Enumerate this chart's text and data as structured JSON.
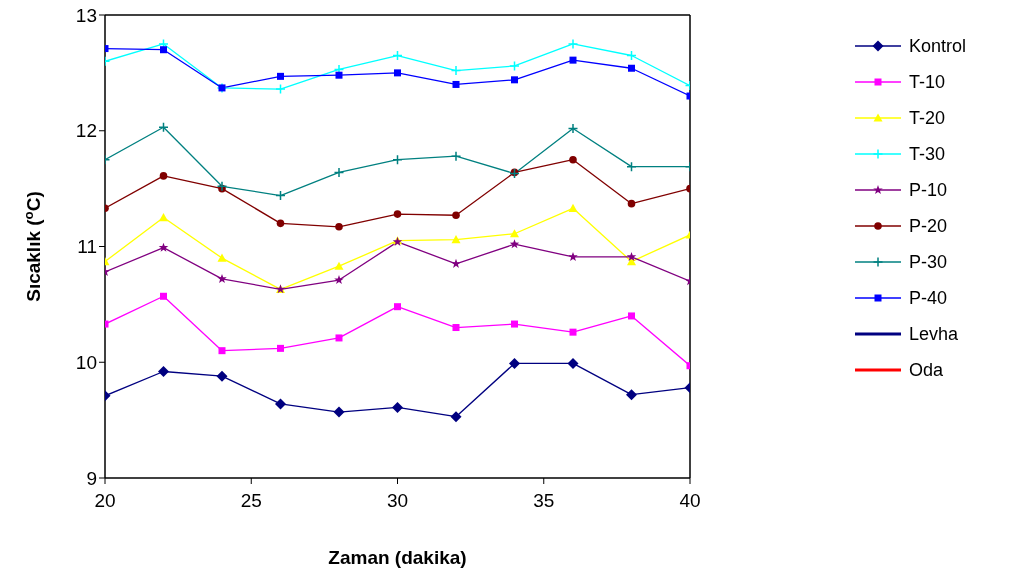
{
  "chart_data": {
    "type": "line",
    "xlabel": "Zaman (dakika)",
    "ylabel": "Sıcaklık ($^{o}$C)",
    "x": [
      20,
      22,
      24,
      26,
      28,
      30,
      32,
      34,
      36,
      38,
      40
    ],
    "xlim": [
      20,
      40
    ],
    "xticks": [
      20,
      25,
      30,
      35,
      40
    ],
    "ylim": [
      9,
      13
    ],
    "yticks": [
      9,
      10,
      11,
      12,
      13
    ],
    "grid": false,
    "legend": "right",
    "line_style": "solid",
    "series": [
      {
        "name": "Kontrol",
        "color": "#000080",
        "marker": "diamond",
        "values": [
          9.71,
          9.92,
          9.88,
          9.64,
          9.57,
          9.61,
          9.53,
          9.99,
          9.99,
          9.72,
          9.78
        ]
      },
      {
        "name": "T-10",
        "color": "#ff00ff",
        "marker": "square",
        "values": [
          10.33,
          10.57,
          10.1,
          10.12,
          10.21,
          10.48,
          10.3,
          10.33,
          10.26,
          10.4,
          9.97
        ]
      },
      {
        "name": "T-20",
        "color": "#ffff00",
        "marker": "triangle",
        "values": [
          10.87,
          11.25,
          10.9,
          10.63,
          10.83,
          11.05,
          11.06,
          11.11,
          11.33,
          10.87,
          11.1
        ]
      },
      {
        "name": "T-30",
        "color": "#00ffff",
        "marker": "cross",
        "values": [
          12.6,
          12.75,
          12.37,
          12.36,
          12.53,
          12.65,
          12.52,
          12.56,
          12.75,
          12.65,
          12.39
        ]
      },
      {
        "name": "P-10",
        "color": "#800080",
        "marker": "star",
        "values": [
          10.78,
          10.99,
          10.72,
          10.63,
          10.71,
          11.04,
          10.85,
          11.02,
          10.91,
          10.91,
          10.7
        ]
      },
      {
        "name": "P-20",
        "color": "#800000",
        "marker": "circle",
        "values": [
          11.33,
          11.61,
          11.5,
          11.2,
          11.17,
          11.28,
          11.27,
          11.64,
          11.75,
          11.37,
          11.5
        ]
      },
      {
        "name": "P-30",
        "color": "#008080",
        "marker": "cross",
        "values": [
          11.75,
          12.03,
          11.52,
          11.44,
          11.64,
          11.75,
          11.78,
          11.63,
          12.02,
          11.69,
          11.69
        ]
      },
      {
        "name": "P-40",
        "color": "#0000ff",
        "marker": "square",
        "values": [
          12.71,
          12.7,
          12.37,
          12.47,
          12.48,
          12.5,
          12.4,
          12.44,
          12.61,
          12.54,
          12.3
        ]
      },
      {
        "name": "Levha",
        "color": "#000080",
        "marker": "none",
        "values": [
          null,
          null,
          null,
          null,
          null,
          null,
          null,
          null,
          null,
          null,
          null
        ]
      },
      {
        "name": "Oda",
        "color": "#ff0000",
        "marker": "none",
        "values": [
          null,
          null,
          null,
          null,
          null,
          null,
          null,
          null,
          null,
          null,
          null
        ]
      }
    ]
  }
}
